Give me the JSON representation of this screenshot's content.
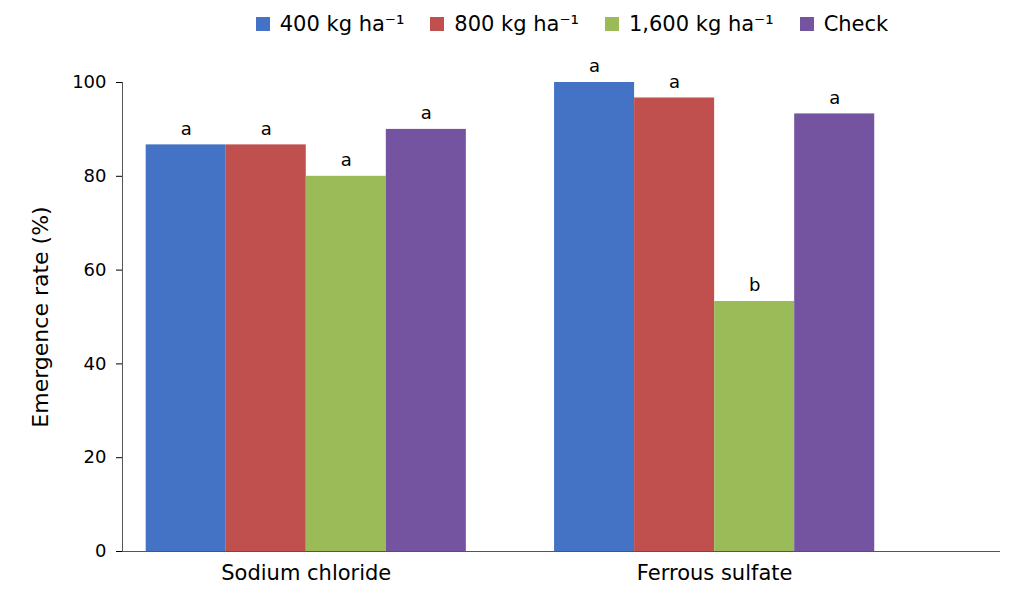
{
  "chart_data": {
    "type": "bar",
    "categories": [
      "Sodium chloride",
      "Ferrous sulfate"
    ],
    "y_label": "Emergence rate (%)",
    "ylim": [
      0,
      100
    ],
    "yticks": [
      0,
      20,
      40,
      60,
      80,
      100
    ],
    "grid": false,
    "legend": "top",
    "series": [
      {
        "name": "400 kg ha⁻¹",
        "color": "#4472c4",
        "values": [
          86.7,
          100
        ],
        "significance": [
          "a",
          "a"
        ]
      },
      {
        "name": "800 kg ha⁻¹",
        "color": "#c0504d",
        "values": [
          86.7,
          96.7
        ],
        "significance": [
          "a",
          "a"
        ]
      },
      {
        "name": "1,600 kg ha⁻¹",
        "color": "#9bbb59",
        "values": [
          80,
          53.3
        ],
        "significance": [
          "a",
          "b"
        ]
      },
      {
        "name": "Check",
        "color": "#7453a0",
        "values": [
          90,
          93.3
        ],
        "significance": [
          "a",
          "a"
        ]
      }
    ]
  }
}
